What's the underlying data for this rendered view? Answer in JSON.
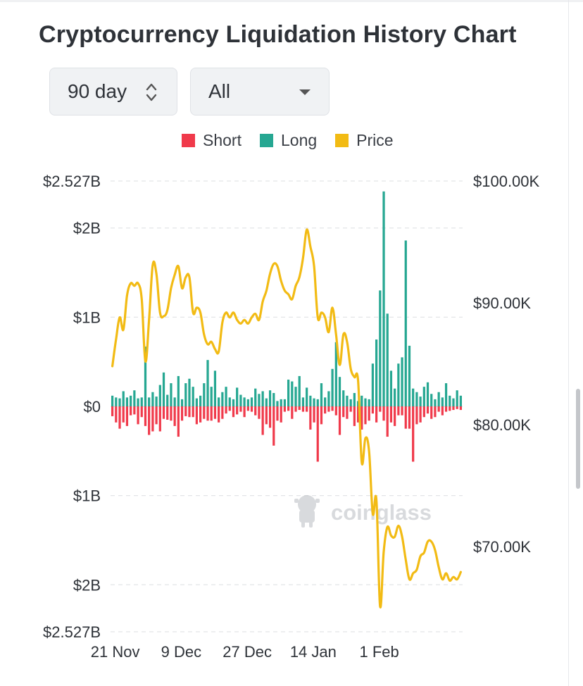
{
  "title": "Cryptocurrency Liquidation History Chart",
  "controls": {
    "range_value": "90 day",
    "coin_value": "All"
  },
  "legend": [
    {
      "label": "Short",
      "color": "#f03a4b"
    },
    {
      "label": "Long",
      "color": "#26a792"
    },
    {
      "label": "Price",
      "color": "#f2bb14"
    }
  ],
  "watermark": "coinglass",
  "chart_data": {
    "type": "bar",
    "title": "Cryptocurrency Liquidation History Chart",
    "left_axis": {
      "labels": [
        "$2.527B",
        "$2B",
        "$1B",
        "$0",
        "$1B",
        "$2B",
        "$2.527B"
      ],
      "values": [
        2.527,
        2,
        1,
        0,
        -1,
        -2,
        -2.527
      ],
      "unit": "billion USD"
    },
    "right_axis": {
      "labels": [
        "$100.00K",
        "$90.00K",
        "$80.00K",
        "$70.00K"
      ],
      "values": [
        100,
        90,
        80,
        70
      ],
      "range": [
        63,
        100
      ],
      "unit": "thousand USD"
    },
    "x_labels": [
      "21 Nov",
      "9 Dec",
      "27 Dec",
      "14 Jan",
      "1 Feb"
    ],
    "x_label_index": [
      0,
      18,
      36,
      54,
      72
    ],
    "grid": true,
    "legend_position": "top",
    "series": [
      {
        "name": "Long",
        "color": "#26a792",
        "values": [
          0.12,
          0.1,
          0.09,
          0.17,
          0.1,
          0.12,
          0.18,
          0.09,
          0.1,
          0.67,
          0.1,
          0.16,
          0.11,
          0.24,
          0.38,
          0.13,
          0.26,
          0.1,
          0.34,
          0.08,
          0.26,
          0.31,
          0.22,
          0.09,
          0.12,
          0.26,
          0.52,
          0.22,
          0.4,
          0.1,
          0.16,
          0.22,
          0.1,
          0.08,
          0.21,
          0.13,
          0.1,
          0.08,
          0.1,
          0.2,
          0.14,
          0.17,
          0.09,
          0.18,
          0.15,
          0.06,
          0.08,
          0.08,
          0.3,
          0.28,
          0.22,
          0.34,
          0.1,
          0.21,
          0.12,
          0.09,
          0.08,
          0.26,
          0.1,
          0.17,
          0.42,
          0.72,
          0.33,
          0.18,
          0.12,
          0.08,
          0.15,
          0.06,
          0.12,
          0.09,
          0.08,
          0.48,
          0.75,
          1.3,
          2.41,
          1.04,
          0.4,
          0.2,
          0.48,
          0.55,
          1.86,
          0.68,
          0.2,
          0.16,
          0.11,
          0.22,
          0.27,
          0.14,
          0.08,
          0.16,
          0.1,
          0.26,
          0.12,
          0.09,
          0.18,
          0.12
        ]
      },
      {
        "name": "Short",
        "color": "#f03a4b",
        "values": [
          0.11,
          0.18,
          0.25,
          0.18,
          0.22,
          0.1,
          0.09,
          0.2,
          0.12,
          0.22,
          0.32,
          0.28,
          0.2,
          0.28,
          0.14,
          0.15,
          0.16,
          0.22,
          0.34,
          0.16,
          0.11,
          0.12,
          0.12,
          0.2,
          0.18,
          0.14,
          0.16,
          0.16,
          0.14,
          0.18,
          0.14,
          0.08,
          0.05,
          0.12,
          0.09,
          0.06,
          0.12,
          0.05,
          0.06,
          0.1,
          0.14,
          0.32,
          0.2,
          0.24,
          0.44,
          0.16,
          0.18,
          0.06,
          0.05,
          0.14,
          0.06,
          0.04,
          0.06,
          0.06,
          0.26,
          0.18,
          0.62,
          0.2,
          0.08,
          0.06,
          0.05,
          0.1,
          0.32,
          0.12,
          0.14,
          0.06,
          0.22,
          0.18,
          0.26,
          0.2,
          0.16,
          0.08,
          0.18,
          0.06,
          0.16,
          0.34,
          0.18,
          0.22,
          0.1,
          0.1,
          0.25,
          0.25,
          0.62,
          0.2,
          0.18,
          0.12,
          0.08,
          0.14,
          0.12,
          0.06,
          0.1,
          0.06,
          0.05,
          0.04,
          0.03,
          0.04
        ]
      },
      {
        "name": "Price",
        "color": "#f2bb14",
        "values": [
          84.8,
          87.0,
          88.8,
          87.8,
          90.6,
          91.6,
          91.4,
          91.6,
          90.3,
          85.2,
          88.6,
          93.1,
          92.4,
          89.2,
          88.9,
          89.4,
          91.2,
          92.3,
          93.0,
          91.2,
          92.1,
          92.1,
          89.2,
          89.6,
          89.2,
          87.4,
          86.6,
          86.8,
          86.2,
          86.0,
          88.4,
          89.2,
          88.8,
          89.2,
          88.6,
          88.3,
          88.6,
          88.3,
          88.8,
          89.1,
          88.6,
          90.1,
          91.0,
          92.4,
          93.2,
          93.0,
          91.8,
          91.0,
          90.7,
          90.3,
          91.4,
          92.1,
          93.7,
          96.0,
          94.6,
          93.0,
          88.8,
          89.2,
          88.8,
          87.6,
          89.6,
          87.4,
          84.9,
          87.4,
          86.8,
          84.6,
          83.9,
          83.6,
          76.9,
          78.9,
          77.8,
          72.7,
          73.8,
          65.1,
          69.6,
          71.6,
          70.9,
          70.8,
          71.7,
          70.8,
          68.9,
          67.3,
          67.8,
          68.1,
          69.2,
          69.5,
          70.4,
          70.4,
          69.7,
          68.3,
          67.3,
          67.8,
          67.2,
          67.5,
          67.3,
          67.9
        ]
      }
    ]
  }
}
